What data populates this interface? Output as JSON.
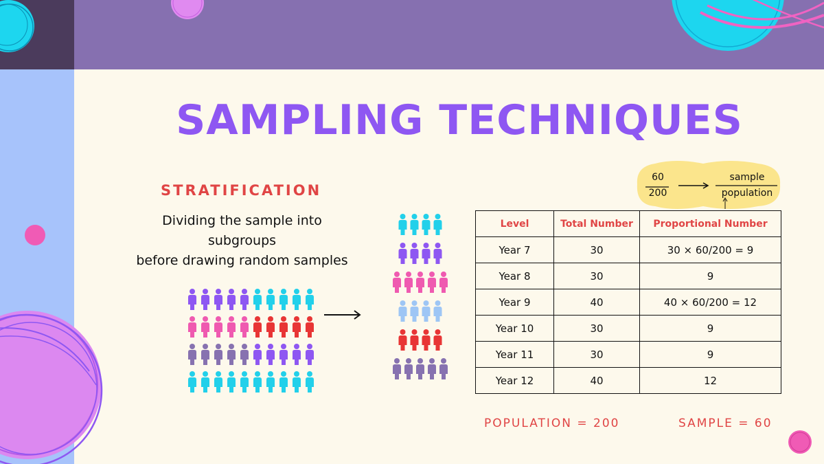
{
  "title": "SAMPLING TECHNIQUES",
  "subtitle": "STRATIFICATION",
  "description": {
    "line1": "Dividing the sample into",
    "line2": "subgroups",
    "line3": "before drawing random samples"
  },
  "formula": {
    "numerator": "60",
    "denominator": "200",
    "target_numerator": "sample",
    "target_denominator": "population"
  },
  "table": {
    "headers": [
      "Level",
      "Total Number",
      "Proportional Number"
    ],
    "rows": [
      [
        "Year 7",
        "30",
        "30 × 60/200 = 9"
      ],
      [
        "Year 8",
        "30",
        "9"
      ],
      [
        "Year 9",
        "40",
        "40 × 60/200 = 12"
      ],
      [
        "Year 10",
        "30",
        "9"
      ],
      [
        "Year 11",
        "30",
        "9"
      ],
      [
        "Year 12",
        "40",
        "12"
      ]
    ]
  },
  "footer": {
    "population": "POPULATION = 200",
    "sample": "SAMPLE = 60"
  },
  "colors": {
    "purple": "#8e57f2",
    "cyan": "#22d0ea",
    "pink": "#ef5ab0",
    "red": "#e83535",
    "gray_purple": "#8772b0",
    "light_blue": "#9ec6f5",
    "accent_red": "#e04545"
  },
  "population_grid": [
    [
      "purple",
      "purple",
      "purple",
      "purple",
      "purple",
      "cyan",
      "cyan",
      "cyan",
      "cyan",
      "cyan"
    ],
    [
      "pink",
      "pink",
      "pink",
      "pink",
      "pink",
      "red",
      "red",
      "red",
      "red",
      "red"
    ],
    [
      "gray_purple",
      "gray_purple",
      "gray_purple",
      "gray_purple",
      "gray_purple",
      "purple",
      "purple",
      "purple",
      "purple",
      "purple"
    ],
    [
      "cyan",
      "cyan",
      "cyan",
      "cyan",
      "cyan",
      "cyan",
      "cyan",
      "cyan",
      "cyan",
      "cyan"
    ]
  ],
  "sample_groups": [
    {
      "color": "cyan",
      "count": 4
    },
    {
      "color": "purple",
      "count": 4
    },
    {
      "color": "pink",
      "count": 5
    },
    {
      "color": "light_blue",
      "count": 4
    },
    {
      "color": "red",
      "count": 4
    },
    {
      "color": "gray_purple",
      "count": 5
    }
  ]
}
